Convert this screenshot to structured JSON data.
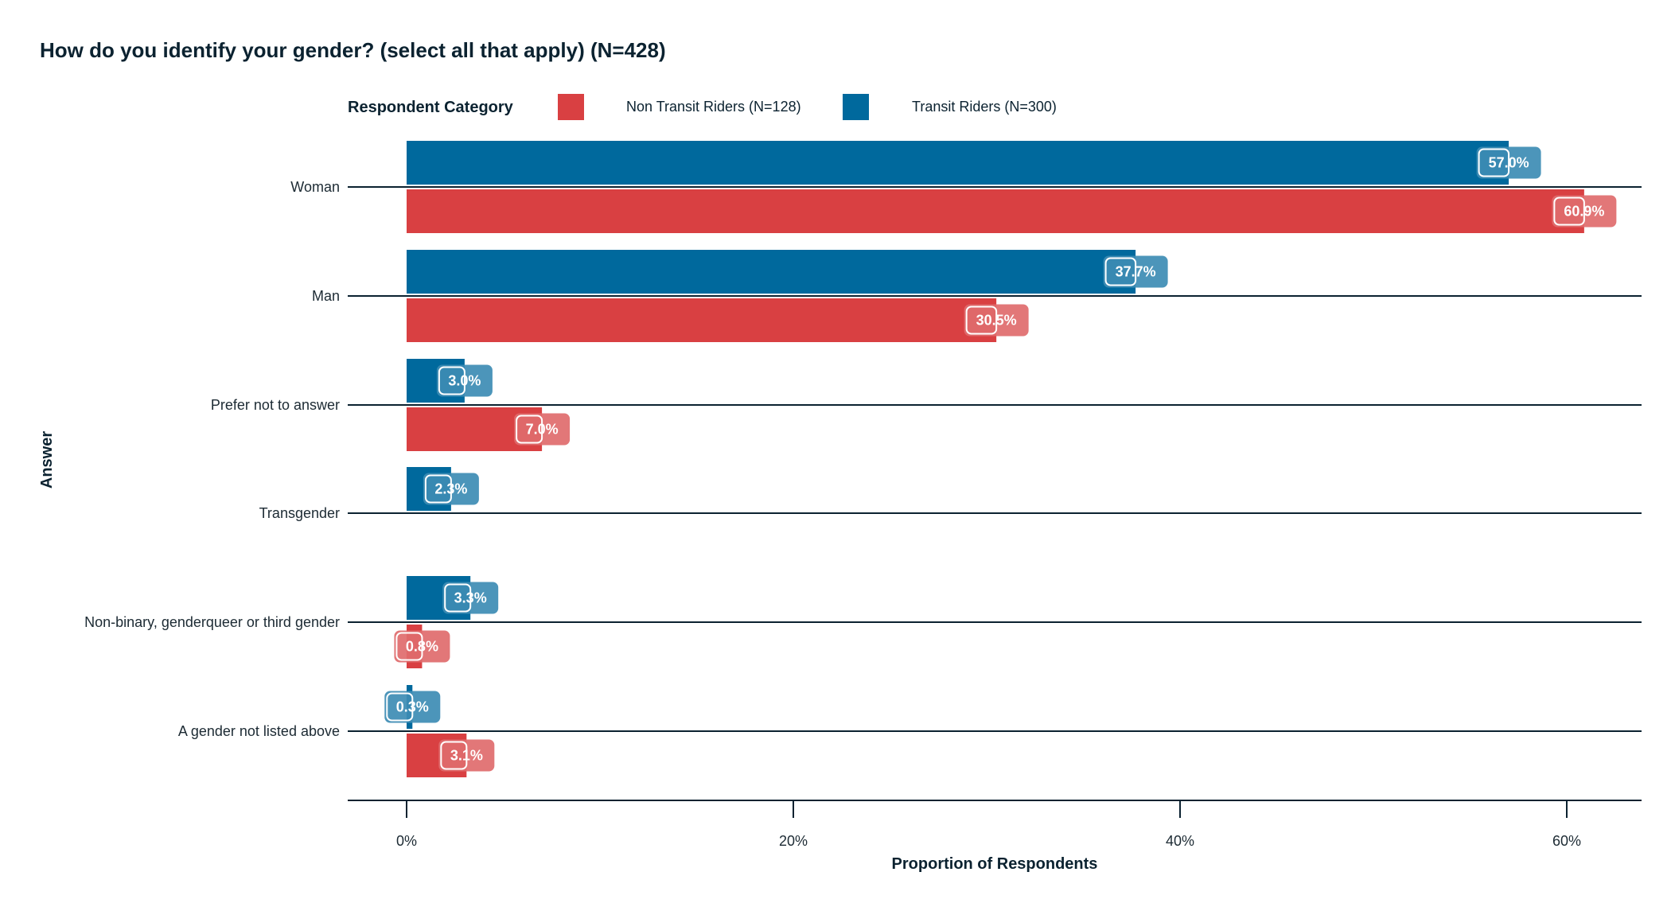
{
  "chart_data": {
    "type": "bar",
    "orientation": "horizontal",
    "title": "How do you identify your gender? (select all that apply) (N=428)",
    "xlabel": "Proportion of Respondents",
    "ylabel": "Answer",
    "xlim": [
      0,
      63
    ],
    "x_ticks": [
      0,
      20,
      40,
      60
    ],
    "x_tick_labels": [
      "0%",
      "20%",
      "40%",
      "60%"
    ],
    "grid": false,
    "legend": {
      "title": "Respondent Category",
      "position": "top"
    },
    "categories": [
      "Woman",
      "Man",
      "Prefer not to answer",
      "Transgender",
      "Non-binary, genderqueer or third gender",
      "A gender not listed above"
    ],
    "series": [
      {
        "name": "Non Transit Riders (N=128)",
        "color": "#d94042",
        "label_color": "#e06b6c",
        "values": [
          60.9,
          30.5,
          7.0,
          null,
          0.8,
          3.1
        ],
        "labels": [
          "60.9%",
          "30.5%",
          "7.0%",
          null,
          "0.8%",
          "3.1%"
        ]
      },
      {
        "name": "Transit Riders (N=300)",
        "color": "#00699d",
        "label_color": "#3d8cb4",
        "values": [
          57.0,
          37.7,
          3.0,
          2.3,
          3.3,
          0.3
        ],
        "labels": [
          "57.0%",
          "37.7%",
          "3.0%",
          "2.3%",
          "3.3%",
          "0.3%"
        ]
      }
    ]
  }
}
